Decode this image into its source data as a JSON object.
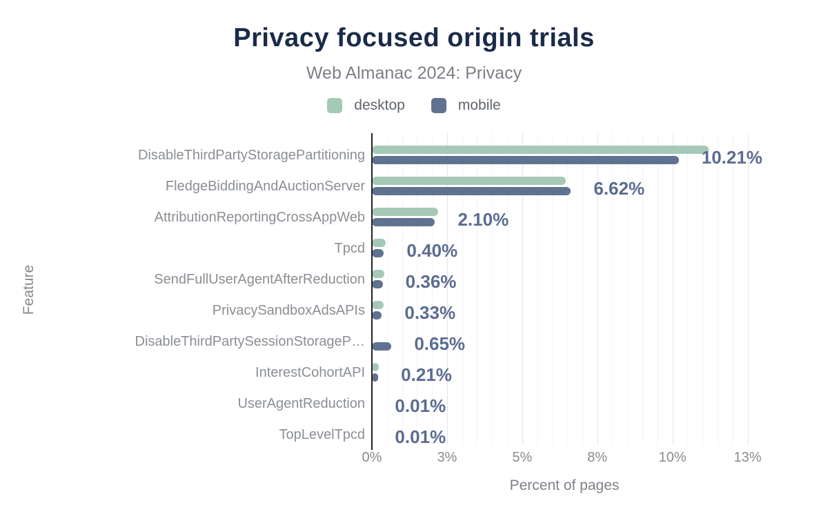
{
  "header": {
    "title": "Privacy focused origin trials",
    "subtitle": "Web Almanac 2024: Privacy"
  },
  "legend": [
    {
      "label": "desktop",
      "color": "#a5c9b6"
    },
    {
      "label": "mobile",
      "color": "#5f7290"
    }
  ],
  "colors": {
    "desktop": "#a5c9b6",
    "mobile": "#5f7290",
    "value_label": "#5b6c90",
    "title": "#1a2b4a",
    "axis_line": "#222222",
    "grid_major": "#e5e5e5",
    "grid_minor": "#f3f3f3"
  },
  "chart_data": {
    "type": "bar",
    "orientation": "horizontal",
    "title": "Privacy focused origin trials",
    "subtitle": "Web Almanac 2024: Privacy",
    "xlabel": "Percent of pages",
    "ylabel": "Feature",
    "xlim": [
      0,
      13.8
    ],
    "grid": {
      "major_step_pct": 2.5,
      "minor_step_pct": 0.5
    },
    "legend_position": "top",
    "x_ticks": [
      {
        "value": 0,
        "label": "0%"
      },
      {
        "value": 2.5,
        "label": "3%"
      },
      {
        "value": 5,
        "label": "5%"
      },
      {
        "value": 7.5,
        "label": "8%"
      },
      {
        "value": 10,
        "label": "10%"
      },
      {
        "value": 12.5,
        "label": "13%"
      }
    ],
    "categories": [
      "DisableThirdPartyStoragePartitioning",
      "FledgeBiddingAndAuctionServer",
      "AttributionReportingCrossAppWeb",
      "Tpcd",
      "SendFullUserAgentAfterReduction",
      "PrivacySandboxAdsAPIs",
      "DisableThirdPartySessionStorageP…",
      "InterestCohortAPI",
      "UserAgentReduction",
      "TopLevelTpcd"
    ],
    "series": [
      {
        "name": "desktop",
        "color": "#a5c9b6",
        "values": [
          11.2,
          6.45,
          2.2,
          0.45,
          0.41,
          0.4,
          0,
          0.23,
          0.01,
          0.01
        ]
      },
      {
        "name": "mobile",
        "color": "#5f7290",
        "values": [
          10.21,
          6.62,
          2.1,
          0.4,
          0.36,
          0.33,
          0.65,
          0.21,
          0.01,
          0.01
        ]
      }
    ],
    "data_labels": [
      "10.21%",
      "6.62%",
      "2.10%",
      "0.40%",
      "0.36%",
      "0.33%",
      "0.65%",
      "0.21%",
      "0.01%",
      "0.01%"
    ]
  }
}
